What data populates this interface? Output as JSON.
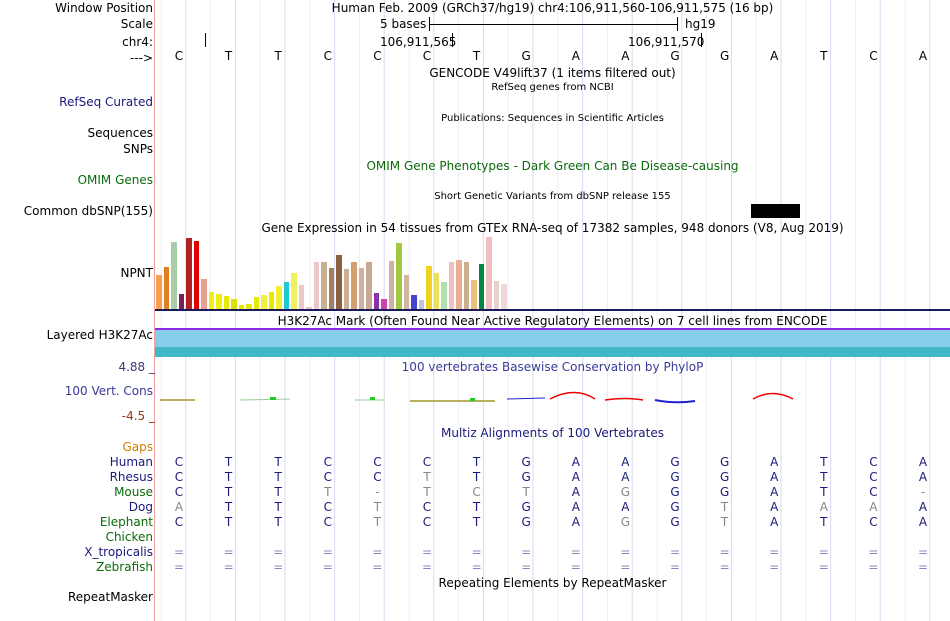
{
  "header": {
    "window_position_label": "Window Position",
    "scale_label": "Scale",
    "chrom_label": "chr4:",
    "arrow_label": "--->",
    "assembly_and_position": "Human Feb. 2009 (GRCh37/hg19)   chr4:106,911,560-106,911,575 (16 bp)",
    "scale_text": "5 bases",
    "scale_assembly": "hg19",
    "coord_left": "106,911,565",
    "coord_right": "106,911,570"
  },
  "sequence": [
    "C",
    "T",
    "T",
    "C",
    "C",
    "C",
    "T",
    "G",
    "A",
    "A",
    "G",
    "G",
    "A",
    "T",
    "C",
    "A"
  ],
  "tracks": {
    "gencode_title": "GENCODE V49lift37 (1 items filtered out)",
    "refseq_desc": "RefSeq genes from NCBI",
    "refseq_label": "RefSeq Curated",
    "publications_desc": "Publications: Sequences in Scientific Articles",
    "sequences_label": "Sequences",
    "snps_label": "SNPs",
    "omim_title": "OMIM Gene Phenotypes - Dark Green Can Be Disease-causing",
    "omim_label": "OMIM Genes",
    "dbsnp_desc": "Short Genetic Variants from dbSNP release 155",
    "dbsnp_label": "Common dbSNP(155)",
    "gtex_title": "Gene Expression in 54 tissues from GTEx RNA-seq of 17382 samples, 948 donors (V8, Aug 2019)",
    "gtex_gene": "NPNT",
    "h3k27ac_title": "H3K27Ac Mark (Often Found Near Active Regulatory Elements) on 7 cell lines from ENCODE",
    "h3k27ac_label": "Layered H3K27Ac",
    "phylop_title": "100 vertebrates Basewise Conservation by PhyloP",
    "phylop_label": "100 Vert. Cons",
    "phylop_max": "4.88 _",
    "phylop_min": "-4.5 _",
    "multiz_title": "Multiz Alignments of 100 Vertebrates",
    "gaps_label": "Gaps",
    "repeat_title": "Repeating Elements by RepeatMasker",
    "repeat_label": "RepeatMasker"
  },
  "alignment": [
    {
      "species": "Human",
      "bases": [
        "C",
        "T",
        "T",
        "C",
        "C",
        "C",
        "T",
        "G",
        "A",
        "A",
        "G",
        "G",
        "A",
        "T",
        "C",
        "A"
      ]
    },
    {
      "species": "Rhesus",
      "bases": [
        "C",
        "T",
        "T",
        "C",
        "C",
        "T",
        "T",
        "G",
        "A",
        "A",
        "G",
        "G",
        "A",
        "T",
        "C",
        "A"
      ]
    },
    {
      "species": "Mouse",
      "bases": [
        "C",
        "T",
        "T",
        "T",
        "-",
        "T",
        "C",
        "T",
        "A",
        "G",
        "G",
        "G",
        "A",
        "T",
        "C",
        "-"
      ]
    },
    {
      "species": "Dog",
      "bases": [
        "A",
        "T",
        "T",
        "C",
        "T",
        "C",
        "T",
        "G",
        "A",
        "A",
        "G",
        "T",
        "A",
        "A",
        "A",
        "A"
      ]
    },
    {
      "species": "Elephant",
      "bases": [
        "C",
        "T",
        "T",
        "C",
        "T",
        "C",
        "T",
        "G",
        "A",
        "G",
        "G",
        "T",
        "A",
        "T",
        "C",
        "A"
      ]
    },
    {
      "species": "Chicken",
      "bases": []
    },
    {
      "species": "X_tropicalis",
      "bases": [
        "=",
        "=",
        "=",
        "=",
        "=",
        "=",
        "=",
        "=",
        "=",
        "=",
        "=",
        "=",
        "=",
        "=",
        "=",
        "="
      ]
    },
    {
      "species": "Zebrafish",
      "bases": [
        "=",
        "=",
        "=",
        "=",
        "=",
        "=",
        "=",
        "=",
        "=",
        "=",
        "=",
        "=",
        "=",
        "=",
        "=",
        "="
      ]
    }
  ],
  "gtex_chart_data": {
    "type": "bar",
    "values": [
      34,
      41,
      66,
      15,
      70,
      67,
      30,
      17,
      15,
      13,
      10,
      4,
      5,
      12,
      14,
      17,
      23,
      27,
      36,
      24,
      2,
      46,
      46,
      40,
      53,
      39,
      46,
      40,
      46,
      16,
      10,
      47,
      65,
      34,
      14,
      9,
      42,
      36,
      27,
      46,
      48,
      46,
      29,
      44,
      71,
      28,
      25
    ],
    "colors": [
      "#f6a04d",
      "#e08020",
      "#aaccaa",
      "#7a1f56",
      "#b22222",
      "#e00000",
      "#e8a090",
      "#f0f010",
      "#f0f010",
      "#e8e800",
      "#e0e000",
      "#e8e800",
      "#e8e800",
      "#e8e800",
      "#f0f040",
      "#e8e800",
      "#f0f030",
      "#20c8d0",
      "#f0f060",
      "#e8c8c8",
      "#e8c8c8",
      "#e8c8c8",
      "#c8b090",
      "#a08060",
      "#8b6040",
      "#c8b090",
      "#d0a070",
      "#d0b0a0",
      "#c8a890",
      "#8833aa",
      "#cc44aa",
      "#d0b0a0",
      "#a0c840",
      "#d0b8a0",
      "#4444cc",
      "#c0c0e0",
      "#f0d020",
      "#e8e060",
      "#b0e0b0",
      "#f0c0c0",
      "#e8b090",
      "#c8b090",
      "#e8c080",
      "#008844",
      "#f0c0c0",
      "#e8d0d0",
      "#f0d8d8"
    ]
  }
}
